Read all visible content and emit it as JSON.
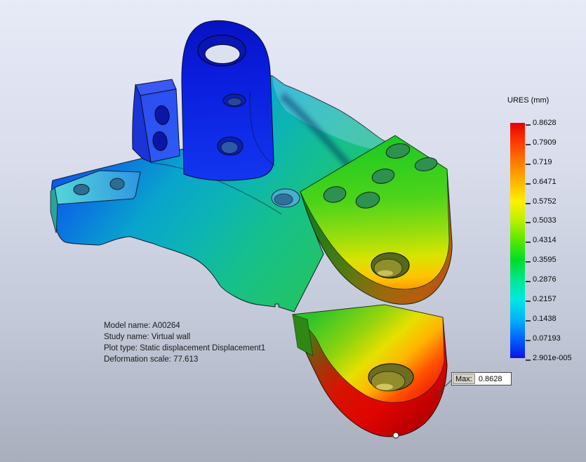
{
  "legend": {
    "title": "URES (mm)",
    "ticks": [
      "0.8628",
      "0.7909",
      "0.719",
      "0.6471",
      "0.5752",
      "0.5033",
      "0.4314",
      "0.3595",
      "0.2876",
      "0.2157",
      "0.1438",
      "0.07193",
      "2.901e-005"
    ],
    "bar_colors": [
      "#e80000",
      "#ff3c00",
      "#ff7a00",
      "#ffb400",
      "#fff000",
      "#b8f000",
      "#58e800",
      "#00dc28",
      "#00e890",
      "#00e8e0",
      "#00b4f8",
      "#0064ff",
      "#0a14e4"
    ]
  },
  "model_info": {
    "lines": [
      "Model name: A00264",
      "Study name: Virtual wall",
      "Plot type: Static displacement Displacement1",
      "Deformation scale: 77.613"
    ]
  },
  "max_callout": {
    "label": "Max:",
    "value": "0.8628"
  },
  "colors": {
    "displacement_min_blue": "#0a14e4",
    "displacement_max_red": "#e80000",
    "background_top": "#e7eaf7",
    "background_bottom": "#a9aebd"
  }
}
